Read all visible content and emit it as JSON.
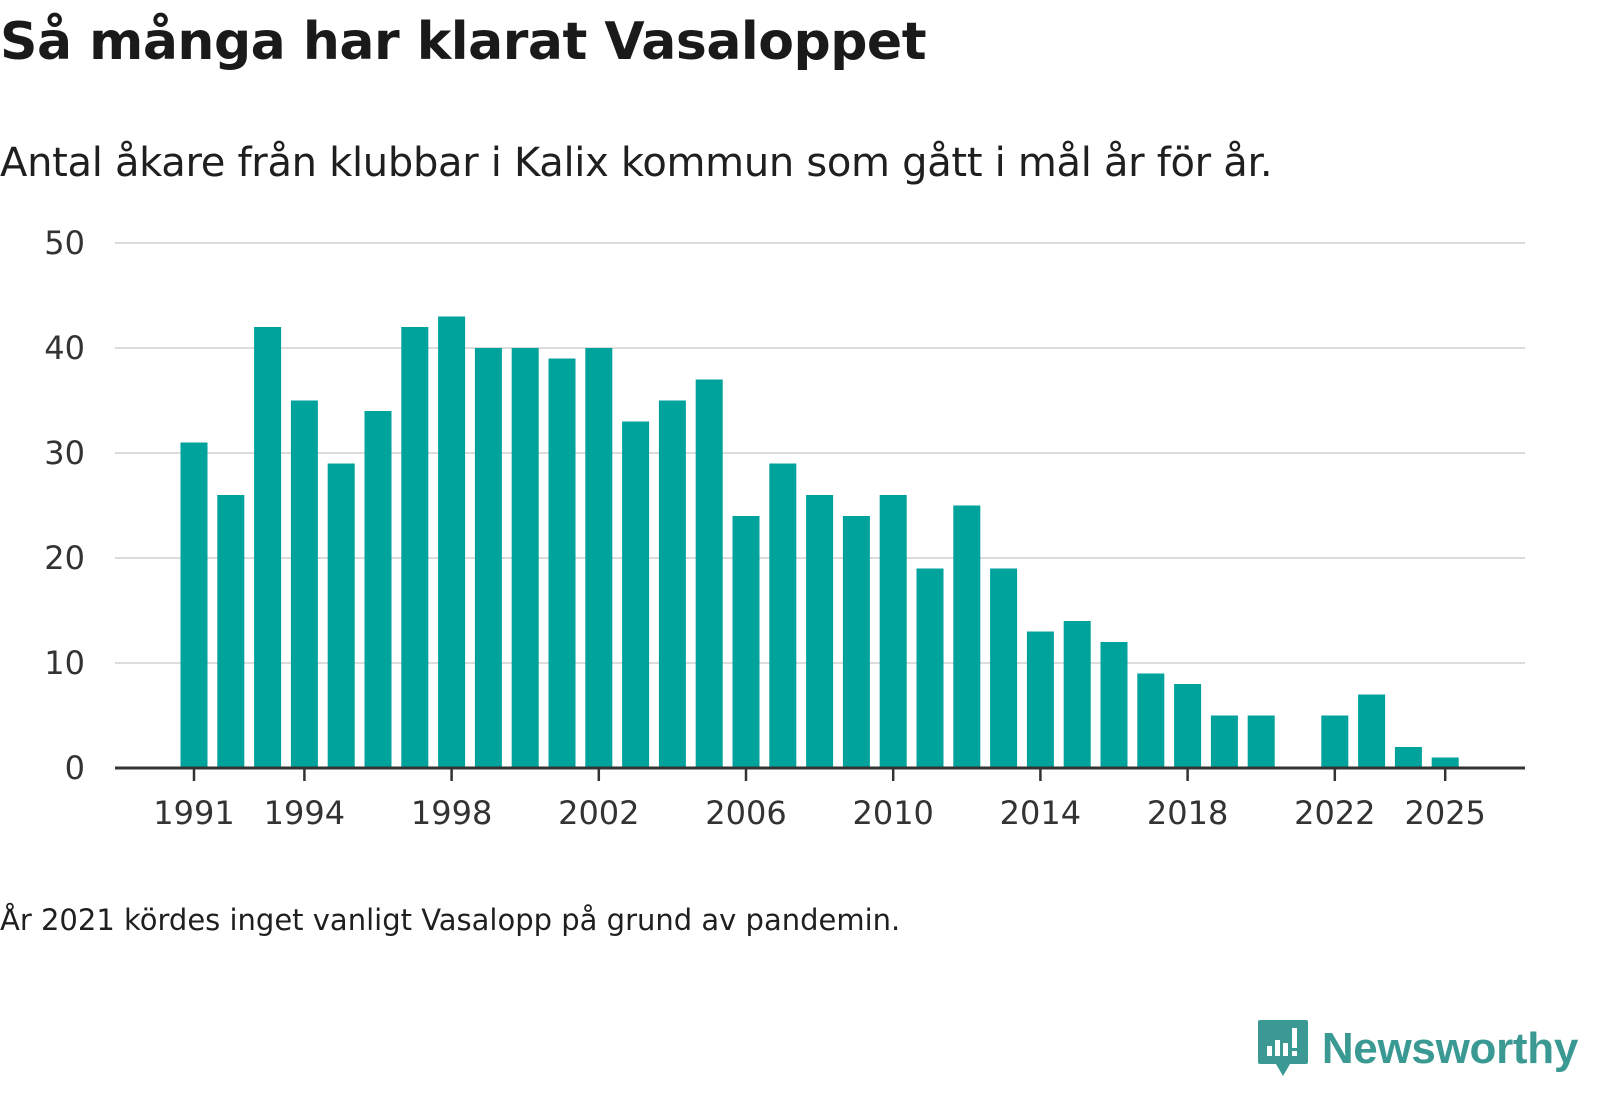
{
  "colors": {
    "bar": "#00a39b",
    "grid": "#dcdcdc",
    "axis": "#333333",
    "brand": "#3a9a93"
  },
  "footer": {
    "note": "År 2021 kördes inget vanligt Vasalopp på grund av pandemin.",
    "brand_name": "Newsworthy",
    "brand_icon": "newsworthy-logo-icon"
  },
  "chart_data": {
    "type": "bar",
    "title": "Så många har klarat Vasaloppet",
    "subtitle": "Antal åkare från klubbar i Kalix kommun som gått i mål år för år.",
    "xlabel": "",
    "ylabel": "",
    "ylim": [
      0,
      50
    ],
    "yticks": [
      0,
      10,
      20,
      30,
      40,
      50
    ],
    "xticks": [
      1991,
      1994,
      1998,
      2002,
      2006,
      2010,
      2014,
      2018,
      2022,
      2025
    ],
    "grid": true,
    "categories": [
      1991,
      1992,
      1993,
      1994,
      1995,
      1996,
      1997,
      1998,
      1999,
      2000,
      2001,
      2002,
      2003,
      2004,
      2005,
      2006,
      2007,
      2008,
      2009,
      2010,
      2011,
      2012,
      2013,
      2014,
      2015,
      2016,
      2017,
      2018,
      2019,
      2020,
      2021,
      2022,
      2023,
      2024,
      2025
    ],
    "values": [
      31,
      26,
      42,
      35,
      29,
      34,
      42,
      43,
      40,
      40,
      39,
      40,
      33,
      35,
      37,
      24,
      29,
      26,
      24,
      26,
      19,
      25,
      19,
      13,
      14,
      12,
      9,
      8,
      5,
      5,
      null,
      5,
      7,
      2,
      1
    ]
  }
}
